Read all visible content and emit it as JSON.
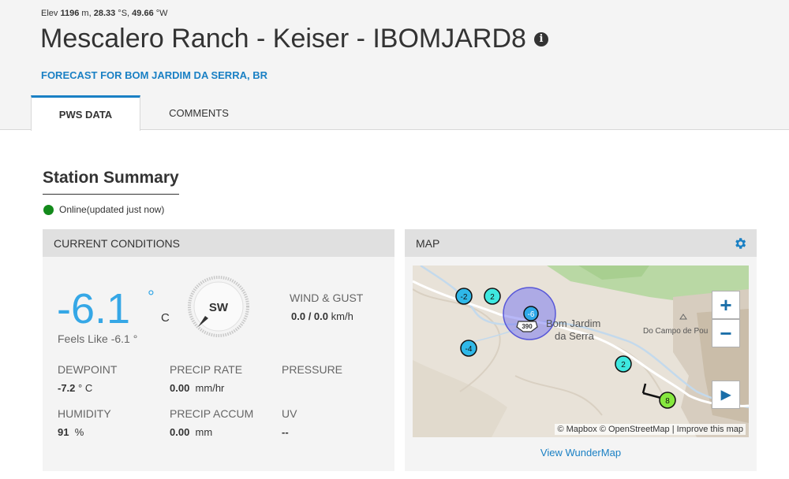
{
  "header": {
    "elev_label": "Elev",
    "elev_value": "1196",
    "elev_unit": "m,",
    "lat_value": "28.33",
    "lat_unit": "°S,",
    "lon_value": "49.66",
    "lon_unit": "°W",
    "title": "Mescalero Ranch - Keiser - IBOMJARD8",
    "info_icon": "i",
    "forecast_link": "FORECAST FOR BOM JARDIM DA SERRA, BR"
  },
  "tabs": [
    {
      "label": "PWS DATA",
      "active": true
    },
    {
      "label": "COMMENTS",
      "active": false
    }
  ],
  "summary": {
    "title": "Station Summary",
    "status": "Online(updated just now)",
    "status_color": "#138a1b"
  },
  "current": {
    "panel_title": "CURRENT CONDITIONS",
    "temp": "-6.1",
    "temp_deg": "°",
    "temp_unit": "C",
    "feels_like": "Feels Like -6.1 °",
    "wind_dir": "SW",
    "wind_label": "WIND & GUST",
    "wind_value": "0.0",
    "gust_value": "/ 0.0",
    "wind_unit": "km/h",
    "dewpoint_label": "DEWPOINT",
    "dewpoint_value": "-7.2",
    "dewpoint_unit": "° C",
    "precip_rate_label": "PRECIP RATE",
    "precip_rate_value": "0.00",
    "precip_rate_unit": "mm/hr",
    "pressure_label": "PRESSURE",
    "humidity_label": "HUMIDITY",
    "humidity_value": "91",
    "humidity_unit": "%",
    "precip_accum_label": "PRECIP ACCUM",
    "precip_accum_value": "0.00",
    "precip_accum_unit": "mm",
    "uv_label": "UV",
    "uv_value": "--",
    "accent_color": "#35a7e6"
  },
  "map": {
    "panel_title": "MAP",
    "town_label_1": "Bom Jardim",
    "town_label_2": "da Serra",
    "peak_label": "Do Campo de Pou",
    "road_label": "390",
    "markers": [
      "-2",
      "2",
      "-6",
      "-4",
      "2",
      "8"
    ],
    "zoom_in": "+",
    "zoom_out": "−",
    "play": "▶",
    "attribution": "© Mapbox © OpenStreetMap | Improve this map",
    "view_link": "View WunderMap"
  }
}
